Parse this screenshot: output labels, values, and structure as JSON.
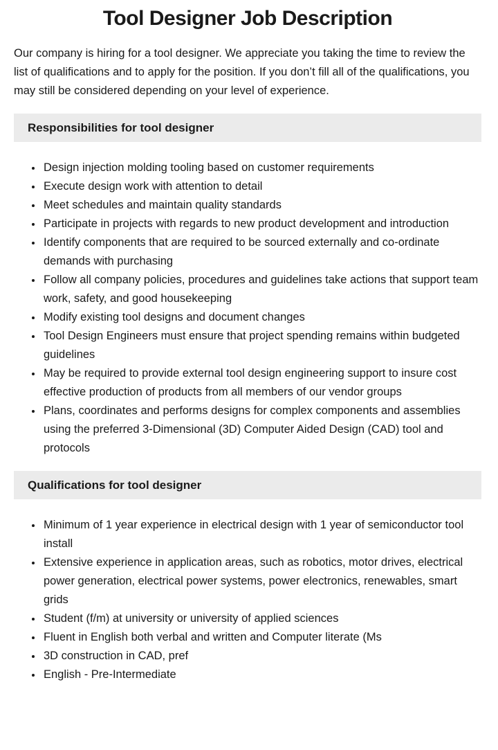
{
  "page": {
    "title": "Tool Designer Job Description",
    "intro": "Our company is hiring for a tool designer. We appreciate you taking the time to review the list of qualifications and to apply for the position. If you don’t fill all of the qualifications, you may still be considered depending on your level of experience."
  },
  "sections": [
    {
      "heading": "Responsibilities for tool designer",
      "items": [
        "Design injection molding tooling based on customer requirements",
        "Execute design work with attention to detail",
        "Meet schedules and maintain quality standards",
        "Participate in projects with regards to new product development and introduction",
        "Identify components that are required to be sourced externally and co-ordinate demands with purchasing",
        "Follow all company policies, procedures and guidelines take actions that support team work, safety, and good housekeeping",
        "Modify existing tool designs and document changes",
        "Tool Design Engineers must ensure that project spending remains within budgeted guidelines",
        "May be required to provide external tool design engineering support to insure cost effective production of products from all members of our vendor groups",
        "Plans, coordinates and performs designs for complex components and assemblies using the preferred 3-Dimensional (3D) Computer Aided Design (CAD) tool and protocols"
      ]
    },
    {
      "heading": "Qualifications for tool designer",
      "items": [
        "Minimum of 1 year experience in electrical design with 1 year of semiconductor tool install",
        "Extensive experience in application areas, such as robotics, motor drives, electrical power generation, electrical power systems, power electronics, renewables, smart grids",
        "Student (f/m) at university or university of applied sciences",
        "Fluent in English both verbal and written and Computer literate (Ms",
        "3D construction in CAD, pref",
        "English - Pre-Intermediate"
      ]
    }
  ],
  "colors": {
    "heading_bg": "#ebebeb",
    "text": "#1a1a1a"
  }
}
